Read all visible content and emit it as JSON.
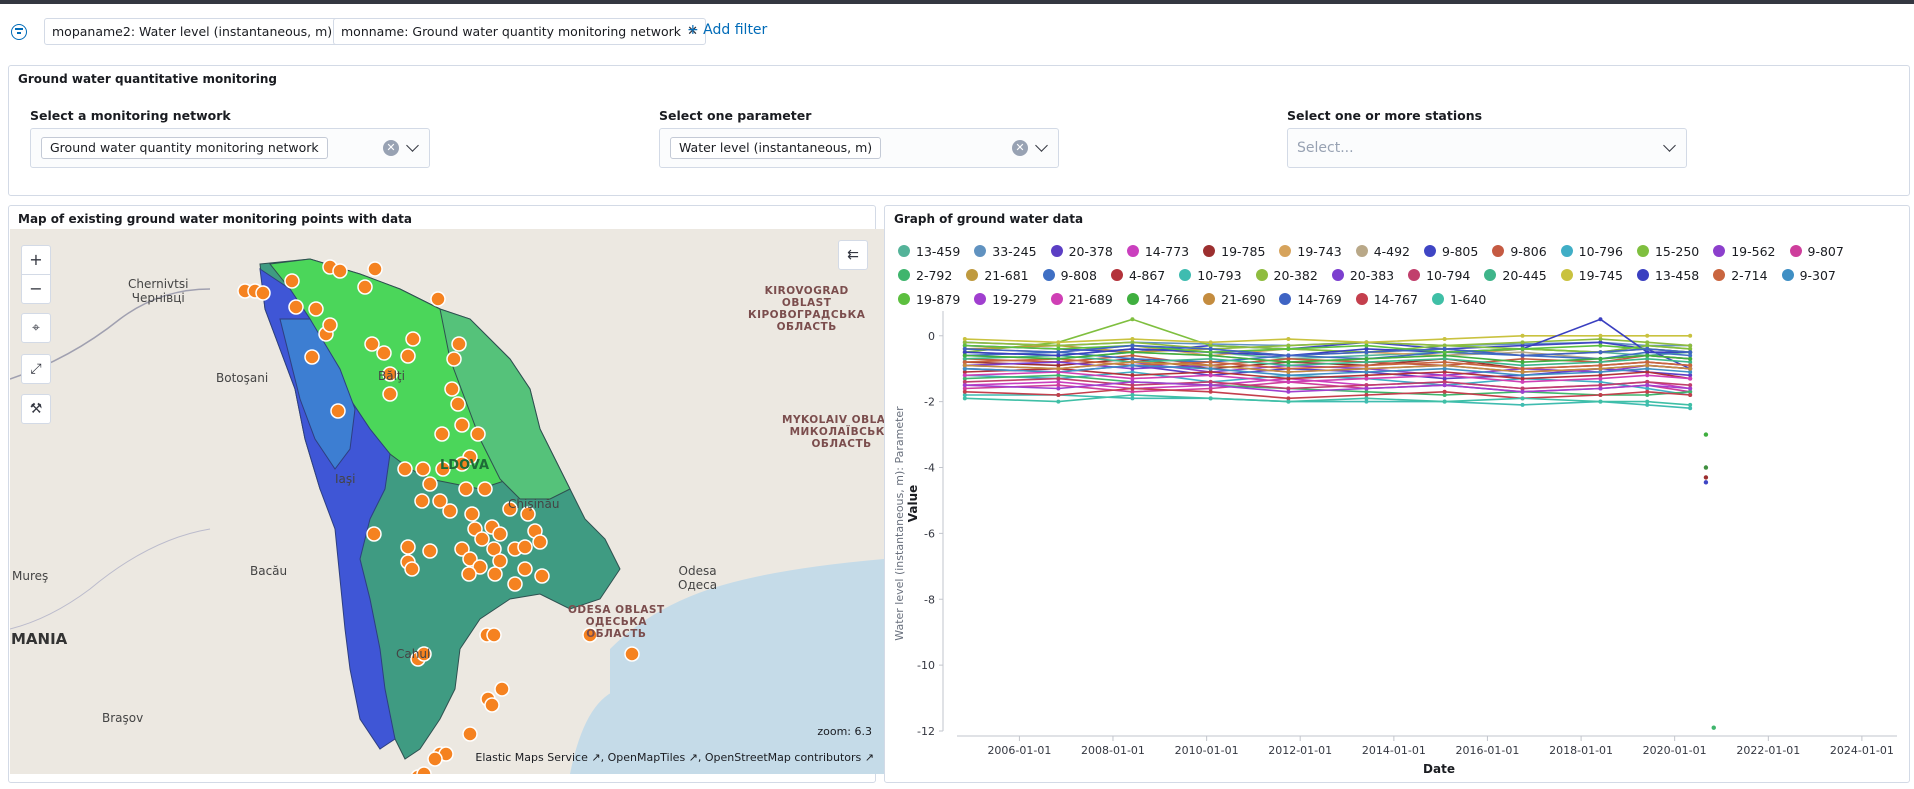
{
  "filters": [
    {
      "label": "mopaname2: Water level (instantaneous, m)"
    },
    {
      "label": "monname: Ground water quantity monitoring network"
    }
  ],
  "add_filter": "+ Add filter",
  "controls": {
    "title": "Ground water quantitative monitoring",
    "network": {
      "label": "Select a monitoring network",
      "value": "Ground water quantity monitoring network"
    },
    "parameter": {
      "label": "Select one parameter",
      "value": "Water level (instantaneous, m)"
    },
    "stations": {
      "label": "Select one or more stations",
      "placeholder": "Select..."
    }
  },
  "map": {
    "title": "Map of existing ground water monitoring points with data",
    "zoom": "zoom: 6.3",
    "attribution": "Elastic Maps Service ↗, OpenMapTiles ↗, OpenStreetMap contributors ↗",
    "places": {
      "chernivtsi": "Chernivtsi\nЧернівці",
      "botosani": "Botoşani",
      "iasi": "Iaşi",
      "bacau": "Bacău",
      "mures": "Mureş",
      "brasov": "Braşov",
      "odesa": "Odesa\nОдеса",
      "balti": "Bălţi",
      "cahul": "Cahul",
      "moldova": "LDOVA",
      "chisinau": "Chişinău",
      "mania": "MANIA"
    },
    "regions": {
      "kirovograd": "KIROVOGRAD\nOBLAST\nКІРОВОГРАДСЬКА\nОБЛАСТЬ",
      "mykolaiv": "MYKOLAIV OBLAST\nМИКОЛАЇВСЬКА\nОБЛАСТЬ",
      "odesa_obl": "ODESA OBLAST\nОДЕСЬКА\nОБЛАСТЬ"
    },
    "controls": {
      "zoom_in": "+",
      "zoom_out": "−",
      "collapse": "⇇"
    }
  },
  "graph": {
    "title": "Graph of ground water data"
  },
  "colors": {
    "accent": "#006bb8",
    "point": "#f58220"
  },
  "chart_data": {
    "type": "line",
    "xlabel": "Date",
    "ylabel": "Water level (instantaneous, m): Parameter",
    "ylabel2": "Value",
    "x_ticks": [
      "2006-01-01",
      "2008-01-01",
      "2010-01-01",
      "2012-01-01",
      "2014-01-01",
      "2016-01-01",
      "2018-01-01",
      "2020-01-01",
      "2022-01-01",
      "2024-01-01"
    ],
    "y_ticks": [
      "0",
      "-2",
      "-4",
      "-6",
      "-8",
      "-10",
      "-12"
    ],
    "ylim": [
      -12,
      0.6
    ],
    "xlim": [
      "2004-09-01",
      "2024-10-01"
    ],
    "legend_position": "top",
    "series": [
      {
        "name": "13-459",
        "color": "#54b399",
        "values": [
          -0.5,
          -0.6,
          -0.4,
          -0.5,
          -0.7,
          -0.6,
          -0.5,
          -0.4,
          -0.5,
          -0.6,
          -0.5
        ]
      },
      {
        "name": "33-245",
        "color": "#6092c0",
        "values": [
          -0.2,
          -0.3,
          -0.2,
          -0.25,
          -0.3,
          -0.2,
          -0.3,
          -0.25,
          -0.2,
          -0.3,
          -0.3
        ]
      },
      {
        "name": "20-378",
        "color": "#5b3ec4",
        "values": [
          -1.0,
          -1.1,
          -0.9,
          -1.2,
          -1.0,
          -1.1,
          -1.3,
          -1.2,
          -1.0,
          -1.1,
          -1.2
        ]
      },
      {
        "name": "14-773",
        "color": "#ca3fbe",
        "values": [
          -1.5,
          -1.4,
          -1.6,
          -1.5,
          -1.3,
          -1.5,
          -1.4,
          -1.6,
          -1.5,
          -1.4,
          -1.6
        ]
      },
      {
        "name": "19-785",
        "color": "#9c2f2f",
        "values": [
          -0.8,
          -0.9,
          -0.7,
          -1.0,
          -0.8,
          -0.9,
          -0.7,
          -1.0,
          -0.9,
          -0.8,
          -0.9
        ]
      },
      {
        "name": "19-743",
        "color": "#d6a35c",
        "values": [
          -0.4,
          -0.5,
          -0.3,
          -0.6,
          -0.4,
          -0.5,
          -0.6,
          -0.4,
          -0.5,
          -0.3,
          -0.4
        ]
      },
      {
        "name": "4-492",
        "color": "#b9a888",
        "values": [
          -0.6,
          -0.7,
          -0.5,
          -0.6,
          -0.8,
          -0.7,
          -0.6,
          -0.5,
          -0.7,
          -0.6,
          -0.7
        ]
      },
      {
        "name": "9-805",
        "color": "#3f45c4",
        "values": [
          -0.3,
          -0.4,
          -0.5,
          -0.3,
          -0.4,
          -0.2,
          -0.4,
          -0.3,
          -0.2,
          -0.4,
          -1.0
        ]
      },
      {
        "name": "9-806",
        "color": "#c55a42",
        "values": [
          -0.7,
          -0.8,
          -0.6,
          -0.9,
          -0.7,
          -0.8,
          -0.9,
          -0.7,
          -0.8,
          -0.6,
          -0.7
        ]
      },
      {
        "name": "10-796",
        "color": "#40aec6",
        "values": [
          -1.2,
          -1.3,
          -1.1,
          -1.4,
          -1.2,
          -1.3,
          -1.5,
          -1.3,
          -1.4,
          -1.6,
          -1.8
        ]
      },
      {
        "name": "15-250",
        "color": "#7fbf3f",
        "values": [
          -0.5,
          -0.2,
          0.5,
          -0.3,
          -0.4,
          -0.5,
          -0.3,
          -0.4,
          -0.5,
          -0.3,
          -0.4
        ]
      },
      {
        "name": "19-562",
        "color": "#8c3fcc",
        "values": [
          -0.9,
          -1.0,
          -0.8,
          -1.1,
          -0.9,
          -1.0,
          -1.2,
          -1.0,
          -1.1,
          -0.9,
          -1.0
        ]
      },
      {
        "name": "9-807",
        "color": "#ce3e9c",
        "values": [
          -1.6,
          -1.5,
          -1.7,
          -1.6,
          -1.4,
          -1.6,
          -1.5,
          -1.7,
          -1.6,
          -1.5,
          -1.7
        ]
      },
      {
        "name": "2-792",
        "color": "#3fb56d",
        "values": [
          -1.3,
          -1.2,
          -1.4,
          -1.5,
          -1.6,
          -1.7,
          -1.8,
          -1.7,
          -1.8,
          -1.8,
          -1.7
        ]
      },
      {
        "name": "21-681",
        "color": "#bf9a3f",
        "values": [
          -0.4,
          -0.3,
          -0.5,
          -0.4,
          -0.6,
          -0.5,
          -0.4,
          -0.6,
          -0.5,
          -0.4,
          -0.5
        ]
      },
      {
        "name": "9-808",
        "color": "#3f6fc4",
        "values": [
          -0.6,
          -0.5,
          -0.7,
          -0.8,
          -0.6,
          -0.7,
          -0.5,
          -0.6,
          -0.7,
          -0.5,
          -0.6
        ]
      },
      {
        "name": "4-867",
        "color": "#b3323a",
        "values": [
          -1.1,
          -1.0,
          -1.2,
          -1.1,
          -1.3,
          -1.2,
          -1.1,
          -1.3,
          -1.2,
          -1.1,
          -1.3
        ]
      },
      {
        "name": "10-793",
        "color": "#3fbcb0",
        "values": [
          -1.8,
          -1.8,
          -1.9,
          -1.9,
          -2.0,
          -2.0,
          -2.0,
          -2.1,
          -2.0,
          -2.1,
          -2.2
        ]
      },
      {
        "name": "20-382",
        "color": "#8fbc3f",
        "values": [
          -0.2,
          -0.3,
          -0.2,
          -0.4,
          -0.3,
          -0.2,
          -0.3,
          -0.2,
          -0.1,
          -0.2,
          -0.3
        ]
      },
      {
        "name": "20-383",
        "color": "#7c3fcf",
        "values": [
          -0.9,
          -0.8,
          -1.0,
          -0.9,
          -1.1,
          -1.0,
          -0.9,
          -1.1,
          -1.0,
          -0.9,
          -1.0
        ]
      },
      {
        "name": "10-794",
        "color": "#c13f6c",
        "values": [
          -1.4,
          -1.3,
          -1.5,
          -1.4,
          -1.6,
          -1.5,
          -1.4,
          -1.6,
          -1.5,
          -1.4,
          -1.5
        ]
      },
      {
        "name": "20-445",
        "color": "#3fb58a",
        "values": [
          -0.7,
          -0.6,
          -0.8,
          -0.7,
          -0.9,
          -0.8,
          -0.7,
          -0.9,
          -0.8,
          -0.7,
          -0.8
        ]
      },
      {
        "name": "19-745",
        "color": "#c9c23f",
        "values": [
          -0.1,
          -0.2,
          -0.1,
          -0.2,
          -0.1,
          -0.2,
          -0.1,
          0.0,
          0.0,
          0.0,
          0.0
        ]
      },
      {
        "name": "13-458",
        "color": "#3a3fc0",
        "values": [
          -0.5,
          -0.6,
          -0.4,
          -0.5,
          -0.6,
          -0.4,
          -0.5,
          -0.4,
          0.5,
          -0.5,
          -0.5
        ]
      },
      {
        "name": "2-714",
        "color": "#c9653f",
        "values": [
          -0.8,
          -0.7,
          -0.9,
          -0.8,
          -1.0,
          -0.9,
          -0.8,
          -1.0,
          -0.9,
          -0.8,
          -0.9
        ]
      },
      {
        "name": "9-307",
        "color": "#3f8fc4",
        "values": [
          -1.0,
          -1.1,
          -0.9,
          -1.0,
          -1.2,
          -1.1,
          -1.0,
          -1.2,
          -1.1,
          -1.0,
          -1.1
        ]
      },
      {
        "name": "19-879",
        "color": "#5cbf3f",
        "values": [
          -0.3,
          -0.4,
          -0.3,
          -0.5,
          -0.4,
          -0.3,
          -0.5,
          -0.4,
          -0.3,
          -0.4,
          -0.5
        ]
      },
      {
        "name": "19-279",
        "color": "#a03fcf",
        "values": [
          -1.5,
          -1.6,
          -1.4,
          -1.5,
          -1.7,
          -1.6,
          -1.5,
          -1.7,
          -1.6,
          -1.5,
          -1.6
        ]
      },
      {
        "name": "21-689",
        "color": "#cf3fb5",
        "values": [
          -1.2,
          -1.1,
          -1.3,
          -1.2,
          -1.4,
          -1.3,
          -1.2,
          -1.4,
          -1.3,
          -1.2,
          -1.3
        ]
      },
      {
        "name": "14-766",
        "color": "#3faf3f",
        "values": [
          -0.6,
          -0.7,
          -0.5,
          -0.6,
          -0.8,
          -0.7,
          -0.6,
          -0.8,
          -0.7,
          -0.6,
          -0.7
        ]
      },
      {
        "name": "21-690",
        "color": "#c48c3f",
        "values": [
          -0.9,
          -1.0,
          -0.8,
          -0.9,
          -1.1,
          -1.0,
          -0.9,
          -1.1,
          -1.0,
          -0.9,
          -1.0
        ]
      },
      {
        "name": "14-769",
        "color": "#3f64c4",
        "values": [
          -0.4,
          -0.5,
          -0.3,
          -0.4,
          -0.6,
          -0.5,
          -0.4,
          -0.6,
          -0.5,
          -0.4,
          -0.5
        ]
      },
      {
        "name": "14-767",
        "color": "#c43f4d",
        "values": [
          -1.7,
          -1.8,
          -1.6,
          -1.7,
          -1.9,
          -1.8,
          -1.7,
          -1.9,
          -1.8,
          -1.7,
          -1.8
        ]
      },
      {
        "name": "1-640",
        "color": "#3fbfa6",
        "values": [
          -1.9,
          -2.0,
          -1.8,
          -1.9,
          -2.0,
          -1.9,
          -2.0,
          -1.9,
          -2.0,
          -2.0,
          -2.1
        ]
      }
    ],
    "x": [
      "2004-11-01",
      "2006-11-01",
      "2008-06-01",
      "2010-02-01",
      "2011-10-01",
      "2013-06-01",
      "2015-02-01",
      "2016-10-01",
      "2018-06-01",
      "2019-06-01",
      "2020-05-01"
    ],
    "extra_points": [
      {
        "x": "2020-09-01",
        "y": -3.0,
        "color": "#3faf3f"
      },
      {
        "x": "2020-09-01",
        "y": -4.0,
        "color": "#3f8f3f"
      },
      {
        "x": "2020-09-01",
        "y": -4.3,
        "color": "#9c2f2f"
      },
      {
        "x": "2020-09-01",
        "y": -4.45,
        "color": "#3f45c4"
      },
      {
        "x": "2020-11-01",
        "y": -11.9,
        "color": "#3fb56d"
      }
    ]
  }
}
